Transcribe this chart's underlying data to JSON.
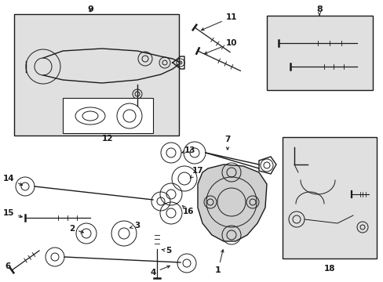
{
  "bg": "#ffffff",
  "lc": "#1a1a1a",
  "box_fill": "#e0e0e0",
  "white": "#ffffff",
  "fig_w": 4.89,
  "fig_h": 3.6,
  "dpi": 100,
  "xlim": [
    0,
    489
  ],
  "ylim": [
    0,
    360
  ]
}
